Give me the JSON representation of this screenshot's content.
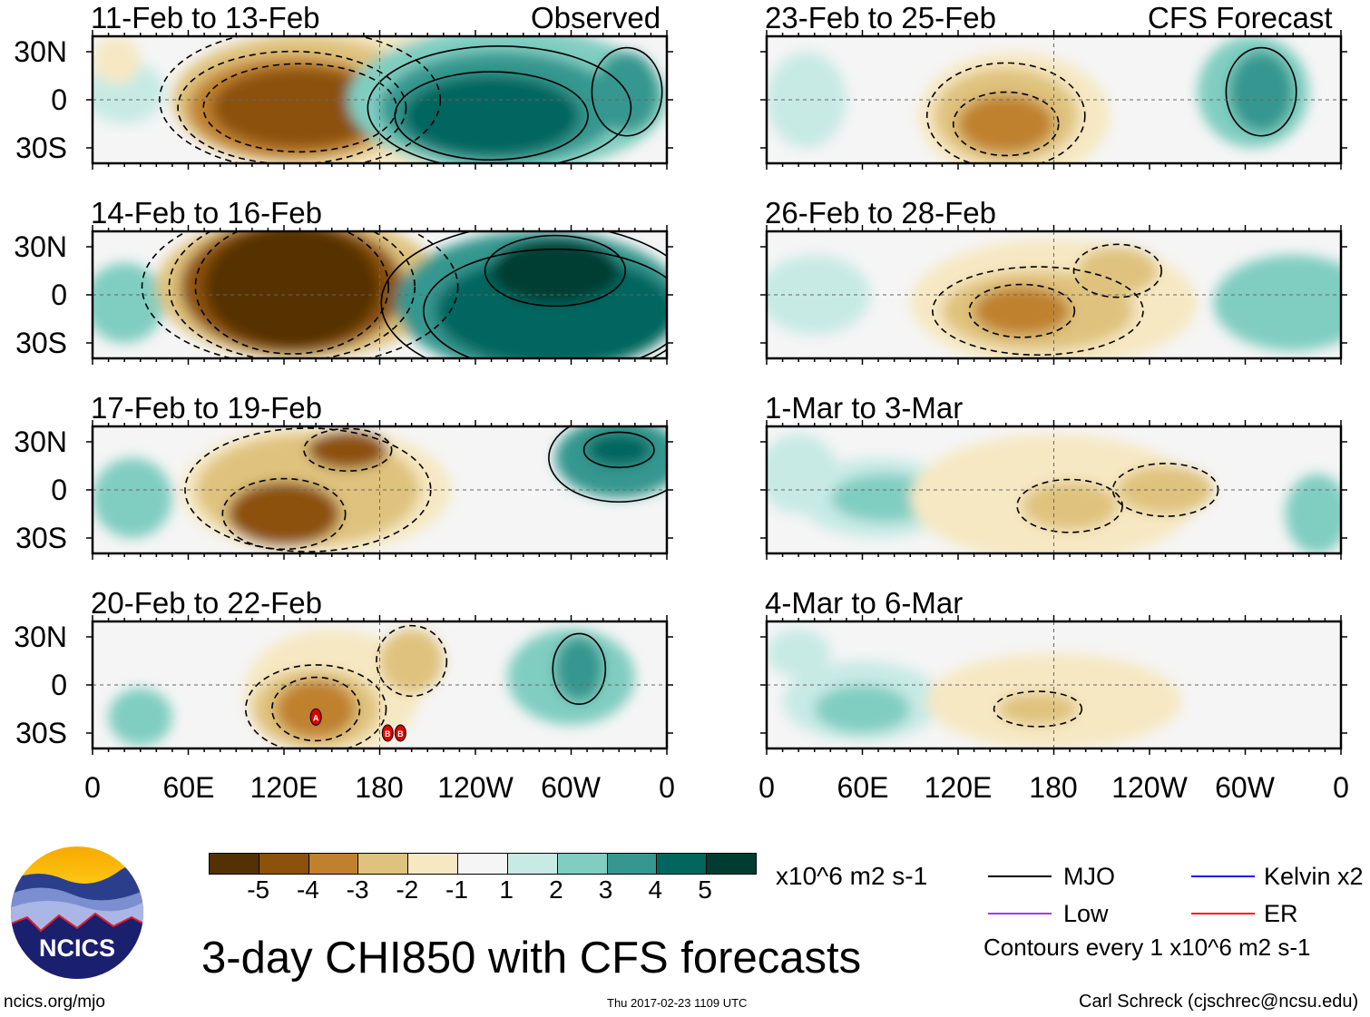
{
  "figure": {
    "title": "3-day CHI850 with CFS forecasts",
    "website": "ncics.org/mjo",
    "timestamp": "Thu 2017-02-23 1109 UTC",
    "author": "Carl Schreck (cjschrec@ncsu.edu)",
    "logo_text": "NCICS"
  },
  "columns": {
    "left_label": "Observed",
    "right_label": "CFS Forecast"
  },
  "panels": [
    {
      "period": "11-Feb to 13-Feb",
      "source": "Observed"
    },
    {
      "period": "14-Feb to 16-Feb",
      "source": "Observed"
    },
    {
      "period": "17-Feb to 19-Feb",
      "source": "Observed"
    },
    {
      "period": "20-Feb to 22-Feb",
      "source": "Observed"
    },
    {
      "period": "23-Feb to 25-Feb",
      "source": "CFS Forecast"
    },
    {
      "period": "26-Feb to 28-Feb",
      "source": "CFS Forecast"
    },
    {
      "period": "1-Mar to 3-Mar",
      "source": "CFS Forecast"
    },
    {
      "period": "4-Mar to 6-Mar",
      "source": "CFS Forecast"
    }
  ],
  "axes": {
    "lat_labels": [
      "30N",
      "0",
      "30S"
    ],
    "lon_labels": [
      "0",
      "60E",
      "120E",
      "180",
      "120W",
      "60W",
      "0"
    ]
  },
  "colorbar": {
    "labels": [
      "-5",
      "-4",
      "-3",
      "-2",
      "-1",
      "1",
      "2",
      "3",
      "4",
      "5"
    ],
    "colors": [
      "#543005",
      "#8c510a",
      "#bf812d",
      "#dfc27d",
      "#f6e8c3",
      "#f5f5f5",
      "#c7eae5",
      "#80cdc1",
      "#35978f",
      "#01665e",
      "#003c30"
    ],
    "units": "x10^6 m2 s-1"
  },
  "legend": {
    "items": [
      {
        "label": "MJO",
        "color": "#000000"
      },
      {
        "label": "Kelvin x2",
        "color": "#1010ff"
      },
      {
        "label": "Low",
        "color": "#a040e0"
      },
      {
        "label": "ER",
        "color": "#ff1010"
      }
    ],
    "note": "Contours every 1 x10^6 m2 s-1"
  },
  "storm_markers": [
    "A",
    "B",
    "B"
  ]
}
